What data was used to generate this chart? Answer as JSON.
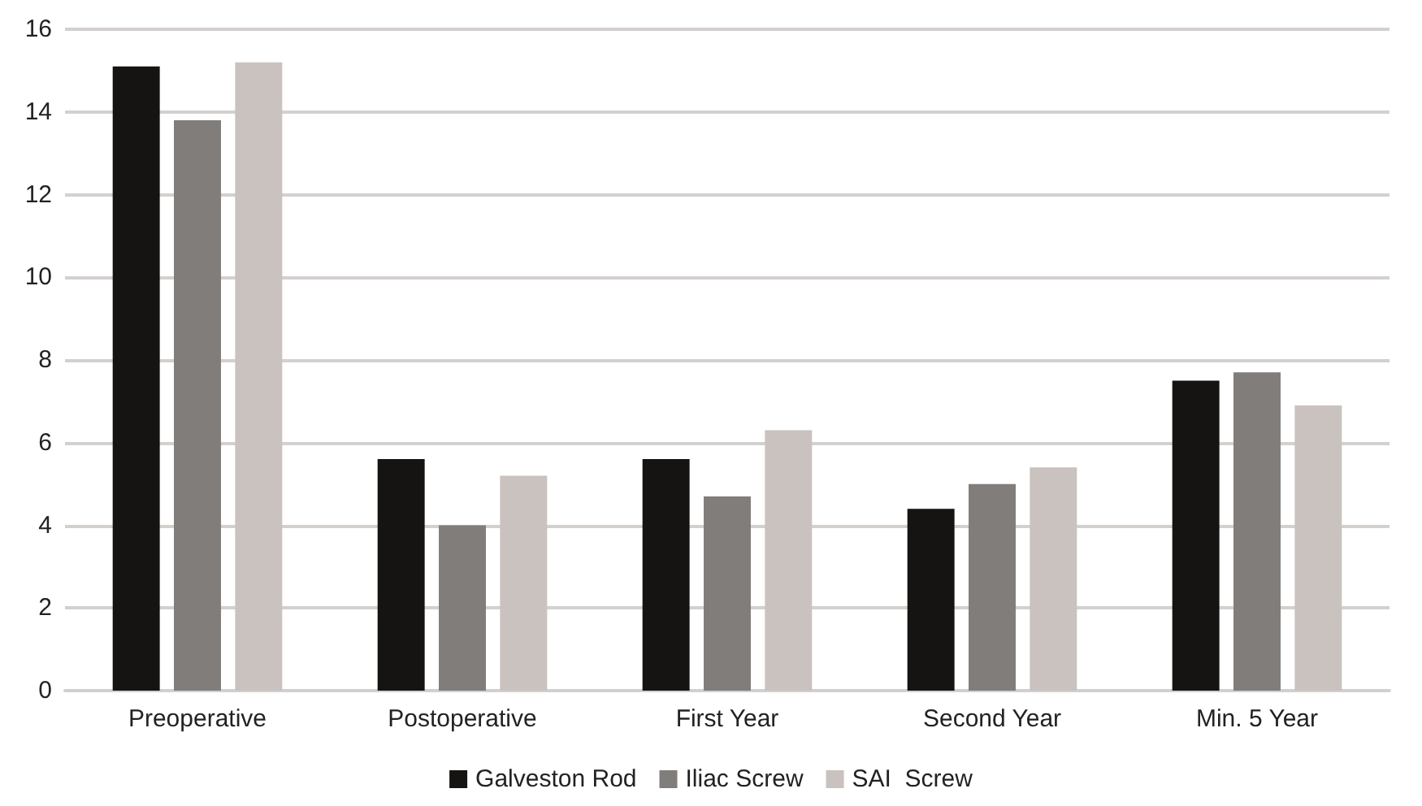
{
  "chart_data": {
    "type": "bar",
    "categories": [
      "Preoperative",
      "Postoperative",
      "First Year",
      "Second Year",
      "Min. 5 Year"
    ],
    "series": [
      {
        "name": "Galveston Rod",
        "color": "#161412",
        "values": [
          15.1,
          5.6,
          5.6,
          4.4,
          7.5
        ]
      },
      {
        "name": "Iliac Screw",
        "color": "#817d7b",
        "values": [
          13.8,
          4.0,
          4.7,
          5.0,
          7.7
        ]
      },
      {
        "name": "SAI  Screw",
        "color": "#cac2be",
        "values": [
          15.2,
          5.2,
          6.3,
          5.4,
          6.9
        ]
      }
    ],
    "ylim": [
      0,
      16
    ],
    "yticks": [
      0,
      2,
      4,
      6,
      8,
      10,
      12,
      14,
      16
    ],
    "grid": "y",
    "legend": "bottom"
  }
}
